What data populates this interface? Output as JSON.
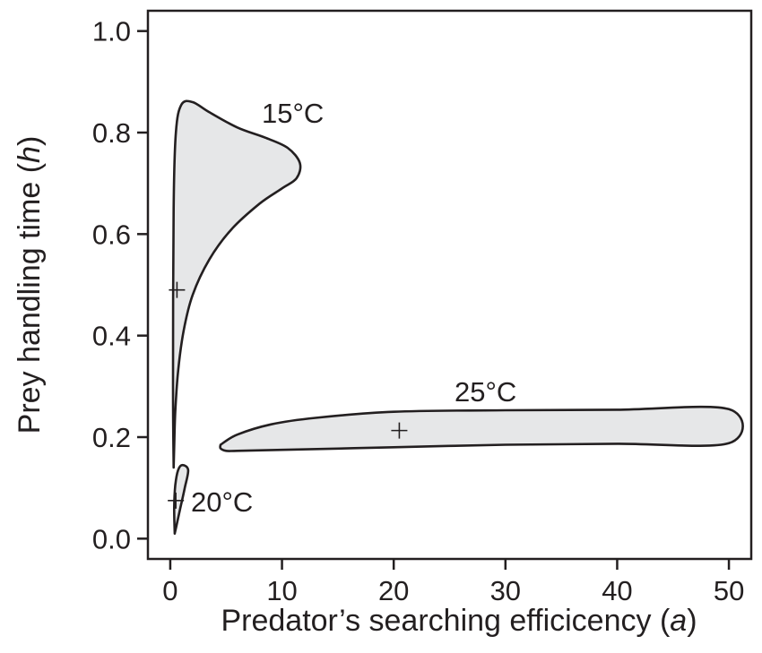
{
  "chart_data": {
    "type": "area",
    "title": "",
    "xlabel_parts": [
      "Predator’s searching efficicency (",
      "a",
      ")"
    ],
    "ylabel_parts": [
      "Prey handling time (",
      "h",
      ")"
    ],
    "xlim": [
      -2,
      52
    ],
    "ylim": [
      -0.04,
      1.04
    ],
    "xticks": [
      0,
      10,
      20,
      30,
      40,
      50
    ],
    "yticks": [
      0.0,
      0.2,
      0.4,
      0.6,
      0.8,
      1.0
    ],
    "xtick_labels": [
      "0",
      "10",
      "20",
      "30",
      "40",
      "50"
    ],
    "ytick_labels": [
      "0.0",
      "0.2",
      "0.4",
      "0.6",
      "0.8",
      "1.0"
    ],
    "grid": false,
    "fill_color": "#e6e7e8",
    "line_color": "#231f20",
    "series": [
      {
        "name": "15°C",
        "estimate": [
          0.6,
          0.49
        ],
        "outline": [
          [
            0.3,
            0.14
          ],
          [
            0.25,
            0.3
          ],
          [
            0.3,
            0.65
          ],
          [
            0.5,
            0.8
          ],
          [
            1.0,
            0.855
          ],
          [
            2.0,
            0.86
          ],
          [
            3.5,
            0.84
          ],
          [
            6.0,
            0.81
          ],
          [
            8.5,
            0.79
          ],
          [
            10.5,
            0.77
          ],
          [
            11.6,
            0.74
          ],
          [
            11.3,
            0.71
          ],
          [
            10.0,
            0.69
          ],
          [
            8.0,
            0.66
          ],
          [
            5.5,
            0.61
          ],
          [
            3.5,
            0.55
          ],
          [
            2.0,
            0.48
          ],
          [
            1.2,
            0.41
          ],
          [
            0.7,
            0.33
          ],
          [
            0.45,
            0.25
          ],
          [
            0.35,
            0.18
          ],
          [
            0.3,
            0.14
          ]
        ]
      },
      {
        "name": "20°C",
        "estimate": [
          0.5,
          0.075
        ],
        "outline": [
          [
            0.4,
            0.01
          ],
          [
            0.35,
            0.06
          ],
          [
            0.45,
            0.105
          ],
          [
            0.7,
            0.135
          ],
          [
            1.1,
            0.145
          ],
          [
            1.6,
            0.135
          ],
          [
            1.3,
            0.1
          ],
          [
            0.9,
            0.06
          ],
          [
            0.6,
            0.03
          ],
          [
            0.4,
            0.01
          ]
        ]
      },
      {
        "name": "25°C",
        "estimate": [
          20.5,
          0.213
        ],
        "outline": [
          [
            4.5,
            0.185
          ],
          [
            6.0,
            0.205
          ],
          [
            9.0,
            0.225
          ],
          [
            13.0,
            0.238
          ],
          [
            20.0,
            0.25
          ],
          [
            30.0,
            0.253
          ],
          [
            40.0,
            0.254
          ],
          [
            50.0,
            0.255
          ],
          [
            50.0,
            0.188
          ],
          [
            40.0,
            0.187
          ],
          [
            30.0,
            0.185
          ],
          [
            20.0,
            0.18
          ],
          [
            10.0,
            0.175
          ],
          [
            6.0,
            0.173
          ],
          [
            5.0,
            0.173
          ],
          [
            4.5,
            0.178
          ],
          [
            4.5,
            0.185
          ]
        ]
      }
    ]
  }
}
